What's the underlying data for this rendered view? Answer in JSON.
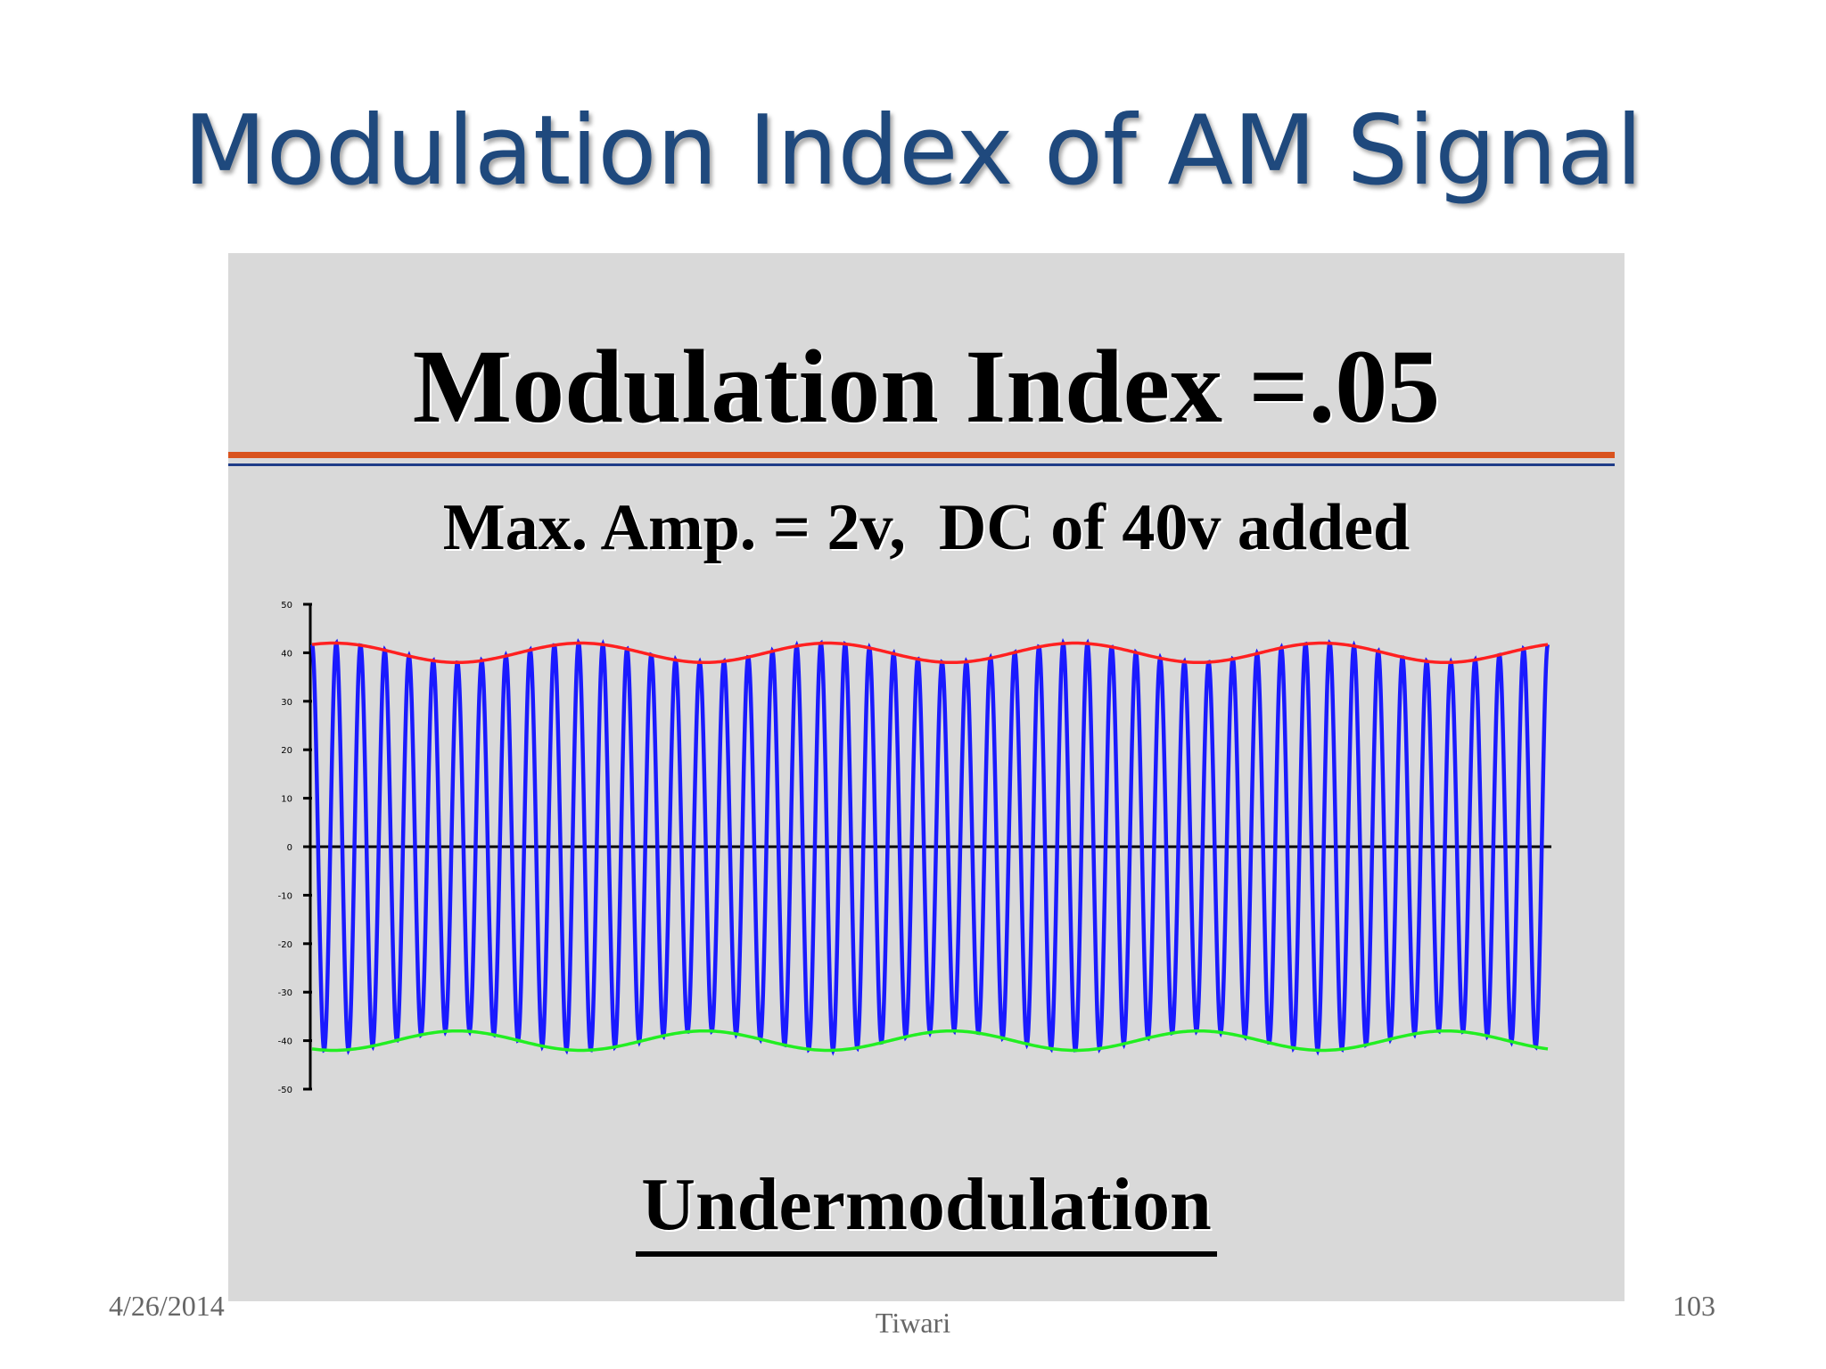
{
  "slide": {
    "title": "Modulation Index of AM Signal",
    "footer_date": "4/26/2014",
    "footer_author": "Tiwari",
    "page_number": "103"
  },
  "figure": {
    "heading": "Modulation Index =.05",
    "subheading": "Max. Amp. = 2v,  DC of 40v added",
    "caption": "Undermodulation",
    "colors": {
      "carrier": "#1a1aff",
      "upper_envelope": "#ff2020",
      "lower_envelope": "#22ee22",
      "heading_rule": "#d9531e",
      "heading_rule_secondary": "#1f3c88"
    }
  },
  "chart_data": {
    "type": "line",
    "title": "",
    "xlabel": "",
    "ylabel": "",
    "ylim": [
      -50,
      50
    ],
    "ytick_values": [
      50,
      40,
      30,
      20,
      10,
      0,
      -10,
      -20,
      -30,
      -40,
      -50
    ],
    "series": [
      {
        "role": "carrier",
        "color": "#1a1aff",
        "amplitude_max": 42,
        "amplitude_min": 38,
        "carrier_cycles": 51
      },
      {
        "role": "upper_envelope",
        "color": "#ff2020",
        "y_max": 42,
        "y_min": 38,
        "cycles": 5
      },
      {
        "role": "lower_envelope",
        "color": "#22ee22",
        "y_max": -38,
        "y_min": -42,
        "cycles": 5
      }
    ]
  }
}
